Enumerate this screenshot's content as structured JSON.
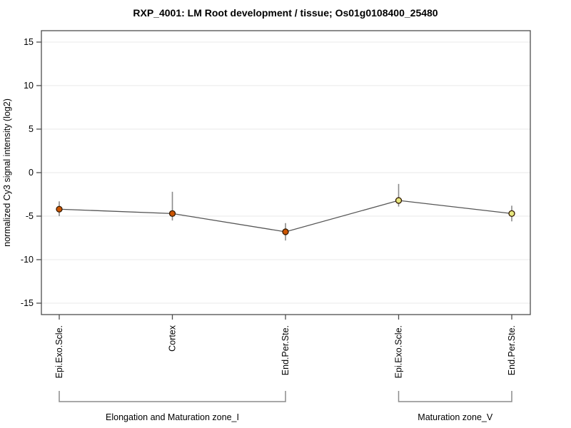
{
  "title": "RXP_4001: LM Root development / tissue; Os01g0108400_25480",
  "chart_data": {
    "type": "line",
    "title": "RXP_4001: LM Root development / tissue; Os01g0108400_25480",
    "xlabel": "",
    "ylabel": "normalized Cy3 signal intensity (log2)",
    "ylim": [
      -16.5,
      16.5
    ],
    "yticks": [
      -15,
      -10,
      -5,
      0,
      5,
      10,
      15
    ],
    "grid": "horizontal",
    "legend": "none",
    "categories": [
      "Epi.Exo.Scle.",
      "Cortex",
      "End.Per.Ste.",
      "Epi.Exo.Scle.",
      "End.Per.Ste."
    ],
    "series": [
      {
        "name": "normalized Cy3 signal intensity (log2)",
        "values": [
          -4.2,
          -4.7,
          -6.8,
          -3.2,
          -4.7
        ],
        "error_high": [
          -3.3,
          -2.2,
          -5.8,
          -1.3,
          -3.8
        ],
        "error_low": [
          -5.0,
          -5.5,
          -7.8,
          -3.9,
          -5.6
        ],
        "point_colors": [
          "#cc5500",
          "#cc5500",
          "#cc5500",
          "#e6e67e",
          "#e6e67e"
        ]
      }
    ],
    "groups": [
      {
        "label": "Elongation and Maturation zone_I",
        "start": 0,
        "end": 2
      },
      {
        "label": "Maturation zone_V",
        "start": 3,
        "end": 4
      }
    ]
  },
  "colors": {
    "background": "#ffffff",
    "frame": "#4d4d4d",
    "gridline": "#e8e8e8",
    "tick": "#4d4d4d",
    "tick_label": "#000000",
    "series_line": "#555555",
    "error_bar": "#8a8a8a",
    "point_border": "#331a00",
    "point_orange": "#cc5500",
    "point_yellow": "#e6e67e",
    "bracket": "#8c8c8c",
    "text": "#000000"
  }
}
